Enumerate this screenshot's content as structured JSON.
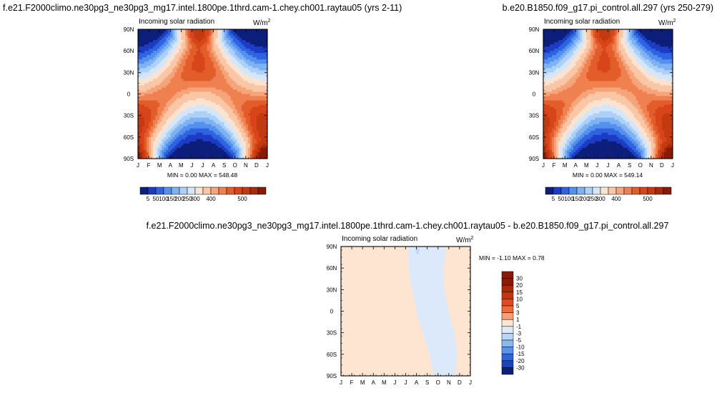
{
  "chart_data": [
    {
      "type": "heatmap",
      "title": "f.e21.F2000climo.ne30pg3_ne30pg3_mg17.intel.1800pe.1thrd.cam-1.chey.ch001.raytau05 (yrs 2-11)",
      "subtitle": "Incoming solar radiation",
      "units": "W/m",
      "units_sup": "2",
      "x_tick_labels": [
        "J",
        "F",
        "M",
        "A",
        "M",
        "J",
        "J",
        "A",
        "S",
        "O",
        "N",
        "D",
        "J"
      ],
      "y_tick_labels": [
        "90N",
        "60N",
        "30N",
        "0",
        "30S",
        "60S",
        "90S"
      ],
      "stats": {
        "min_label": "MIN =",
        "min": "0.00",
        "max_label": "MAX =",
        "max": "548.48"
      },
      "colorbar": {
        "orientation": "horizontal",
        "labels": [
          "5",
          "50",
          "100",
          "150",
          "200",
          "250",
          "300",
          "400",
          "500"
        ]
      }
    },
    {
      "type": "heatmap",
      "title": "b.e20.B1850.f09_g17.pi_control.all.297 (yrs 250-279)",
      "subtitle": "Incoming solar radiation",
      "units": "W/m",
      "units_sup": "2",
      "x_tick_labels": [
        "J",
        "F",
        "M",
        "A",
        "M",
        "J",
        "J",
        "A",
        "S",
        "O",
        "N",
        "D",
        "J"
      ],
      "y_tick_labels": [
        "90N",
        "60N",
        "30N",
        "0",
        "30S",
        "60S",
        "90S"
      ],
      "stats": {
        "min_label": "MIN =",
        "min": "0.00",
        "max_label": "MAX =",
        "max": "549.14"
      },
      "colorbar": {
        "orientation": "horizontal",
        "labels": [
          "5",
          "50",
          "100",
          "150",
          "200",
          "250",
          "300",
          "400",
          "500"
        ]
      }
    },
    {
      "type": "heatmap",
      "title": "f.e21.F2000climo.ne30pg3_ne30pg3_mg17.intel.1800pe.1thrd.cam-1.chey.ch001.raytau05 - b.e20.B1850.f09_g17.pi_control.all.297",
      "subtitle": "Incoming solar radiation",
      "units": "W/m",
      "units_sup": "2",
      "x_tick_labels": [
        "J",
        "F",
        "M",
        "A",
        "M",
        "J",
        "J",
        "A",
        "S",
        "O",
        "N",
        "D",
        "J"
      ],
      "y_tick_labels": [
        "90N",
        "60N",
        "30N",
        "0",
        "30S",
        "60S",
        "90S"
      ],
      "stats": {
        "min_label": "MIN =",
        "min": "-1.10",
        "max_label": "MAX =",
        "max": "0.78"
      },
      "colorbar": {
        "orientation": "vertical",
        "labels": [
          "30",
          "20",
          "15",
          "10",
          "5",
          "3",
          "1",
          "-1",
          "-3",
          "-5",
          "-10",
          "-15",
          "-20",
          "-30"
        ]
      }
    }
  ],
  "colors": {
    "abs_scale": [
      "#0c1f7a",
      "#1c3cc4",
      "#2e64e0",
      "#5490ee",
      "#7fb2f2",
      "#acd0f6",
      "#d4e6fa",
      "#fbe3d1",
      "#f9c6a6",
      "#f6a57a",
      "#ef8050",
      "#e35d2b",
      "#d8451a",
      "#c23b10",
      "#a92a0a",
      "#8b1a05"
    ],
    "diff_scale": [
      "#8b1a05",
      "#a92a0a",
      "#c7350c",
      "#df4a1e",
      "#f06a3a",
      "#f6a07a",
      "#fde5d2",
      "#dce9fb",
      "#b8d4f6",
      "#8cb8f0",
      "#5a93e8",
      "#2d66d8",
      "#1c44b4",
      "#0c1f7a"
    ],
    "diff_pos": "#fde5d2",
    "diff_neg": "#dce9fb",
    "diff_neg2": "#c4d8f6"
  }
}
